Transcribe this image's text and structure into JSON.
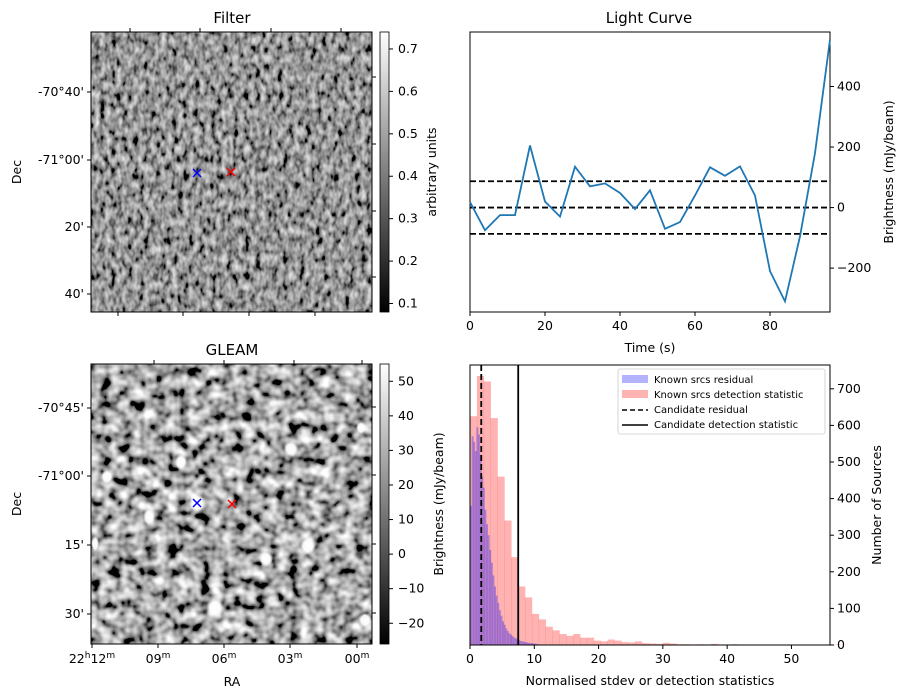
{
  "chart_data": [
    {
      "type": "heatmap",
      "id": "filter",
      "title": "Filter",
      "xlabel": "",
      "ylabel": "Dec",
      "ytick_labels": [
        "-70°40'",
        "-71°00'",
        "20'",
        "40'"
      ],
      "colormap": "gray",
      "colorbar": {
        "label": "arbitrary units",
        "range": [
          0.08,
          0.74
        ],
        "ticks": [
          0.1,
          0.2,
          0.3,
          0.4,
          0.5,
          0.6,
          0.7
        ],
        "tick_labels": [
          "0.1",
          "0.2",
          "0.3",
          "0.4",
          "0.5",
          "0.6",
          "0.7"
        ]
      },
      "markers": [
        {
          "name": "known-source",
          "color": "#0000ff",
          "symbol": "x"
        },
        {
          "name": "candidate",
          "color": "#ff0000",
          "symbol": "x"
        }
      ]
    },
    {
      "type": "line",
      "id": "light_curve",
      "title": "Light Curve",
      "xlabel": "Time (s)",
      "ylabel": "Brightness (mJy/beam)",
      "xlim": [
        0,
        96
      ],
      "ylim": [
        -345,
        580
      ],
      "xticks": [
        0,
        20,
        40,
        60,
        80
      ],
      "yticks": [
        -200,
        0,
        200,
        400
      ],
      "ytick_labels": [
        "−200",
        "0",
        "200",
        "400"
      ],
      "yaxis_side": "right",
      "series": [
        {
          "name": "light curve",
          "color": "#1f77b4",
          "x": [
            0,
            4,
            8,
            12,
            16,
            20,
            24,
            28,
            32,
            36,
            40,
            44,
            48,
            52,
            56,
            60,
            64,
            68,
            72,
            76,
            80,
            84,
            88,
            92,
            96
          ],
          "y": [
            18,
            -75,
            -25,
            -25,
            205,
            20,
            -30,
            135,
            70,
            80,
            48,
            -5,
            57,
            -70,
            -48,
            40,
            133,
            105,
            136,
            40,
            -210,
            -310,
            -95,
            180,
            555
          ]
        }
      ],
      "hlines": [
        {
          "y": 87,
          "style": "dashed",
          "color": "#000000"
        },
        {
          "y": 0,
          "style": "dashed",
          "color": "#000000"
        },
        {
          "y": -87,
          "style": "dashed",
          "color": "#000000"
        }
      ]
    },
    {
      "type": "heatmap",
      "id": "gleam",
      "title": "GLEAM",
      "xlabel": "RA",
      "ylabel": "Dec",
      "xtick_labels": [
        "22h12m",
        "09m",
        "06m",
        "03m",
        "00m"
      ],
      "ytick_labels": [
        "-70°45'",
        "-71°00'",
        "15'",
        "30'"
      ],
      "colormap": "gray",
      "colorbar": {
        "label": "Brightness (mJy/beam)",
        "range": [
          -26,
          55
        ],
        "ticks": [
          -20,
          -10,
          0,
          10,
          20,
          30,
          40,
          50
        ],
        "tick_labels": [
          "−20",
          "−10",
          "0",
          "10",
          "20",
          "30",
          "40",
          "50"
        ]
      },
      "markers": [
        {
          "name": "known-source",
          "color": "#0000ff",
          "symbol": "x"
        },
        {
          "name": "candidate",
          "color": "#ff0000",
          "symbol": "x"
        }
      ]
    },
    {
      "type": "bar",
      "id": "histogram",
      "title": "",
      "xlabel": "Normalised stdev or detection statistics",
      "ylabel_left": "Brightness (mJy/beam)",
      "ylabel": "Number of Sources",
      "yaxis_side": "right",
      "xlim": [
        0,
        56
      ],
      "ylim": [
        0,
        765
      ],
      "xticks": [
        0,
        10,
        20,
        30,
        40,
        50
      ],
      "yticks": [
        0,
        100,
        200,
        300,
        400,
        500,
        600,
        700
      ],
      "series": [
        {
          "name": "Known srcs residual",
          "color": "#0000ff",
          "alpha": 0.3,
          "bin_width": 0.25,
          "bin_start": 0,
          "values": [
            380,
            570,
            555,
            530,
            595,
            575,
            520,
            460,
            430,
            370,
            330,
            300,
            260,
            225,
            190,
            160,
            135,
            115,
            95,
            80,
            65,
            55,
            45,
            38,
            32,
            28,
            24,
            20,
            18,
            15,
            13,
            11,
            10,
            9,
            8,
            7,
            6,
            5,
            5,
            4,
            4,
            3
          ]
        },
        {
          "name": "Known srcs detection statistic",
          "color": "#ff0000",
          "alpha": 0.3,
          "bin_width": 1.07,
          "bin_start": 0,
          "values": [
            625,
            735,
            720,
            620,
            460,
            340,
            240,
            160,
            130,
            85,
            70,
            50,
            40,
            30,
            25,
            30,
            20,
            20,
            12,
            10,
            15,
            12,
            8,
            7,
            10,
            5,
            4,
            3,
            6,
            4,
            2,
            2,
            1,
            2,
            1,
            3,
            0,
            1,
            2,
            0,
            1,
            0,
            1,
            1,
            0,
            0,
            1,
            0,
            0,
            0,
            0,
            0,
            1,
            1
          ]
        }
      ],
      "vlines": [
        {
          "name": "Candidate residual",
          "x": 1.75,
          "style": "dashed",
          "color": "#000000"
        },
        {
          "name": "Candidate detection statistic",
          "x": 7.5,
          "style": "solid",
          "color": "#000000"
        }
      ],
      "legend": {
        "placement": "top-right",
        "entries": [
          "Known srcs residual",
          "Known srcs detection statistic",
          "Candidate residual",
          "Candidate detection statistic"
        ]
      }
    }
  ]
}
